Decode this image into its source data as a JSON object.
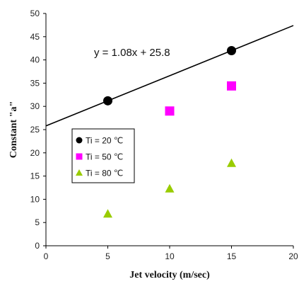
{
  "chart_data": {
    "type": "scatter",
    "xlabel": "Jet velocity (m/sec)",
    "ylabel": "Constant \"a\"",
    "xlim": [
      0,
      20
    ],
    "ylim": [
      0,
      50
    ],
    "xticks": [
      0,
      5,
      10,
      15,
      20
    ],
    "yticks": [
      0,
      5,
      10,
      15,
      20,
      25,
      30,
      35,
      40,
      45,
      50
    ],
    "grid": false,
    "legend_position": "left-middle",
    "series": [
      {
        "name": "Ti = 20 ℃",
        "marker": "circle",
        "color": "#000000",
        "x": [
          5,
          15
        ],
        "y": [
          31.2,
          42.0
        ]
      },
      {
        "name": "Ti = 50 ℃",
        "marker": "square",
        "color": "#ff00ff",
        "x": [
          10,
          15
        ],
        "y": [
          29.0,
          34.4
        ]
      },
      {
        "name": "Ti = 80 ℃",
        "marker": "triangle",
        "color": "#99cc00",
        "x": [
          5,
          10,
          15
        ],
        "y": [
          6.9,
          12.3,
          17.8
        ]
      }
    ],
    "trendline": {
      "series": "Ti = 20 ℃",
      "slope": 1.08,
      "intercept": 25.8,
      "equation": "y = 1.08x + 25.8"
    }
  }
}
